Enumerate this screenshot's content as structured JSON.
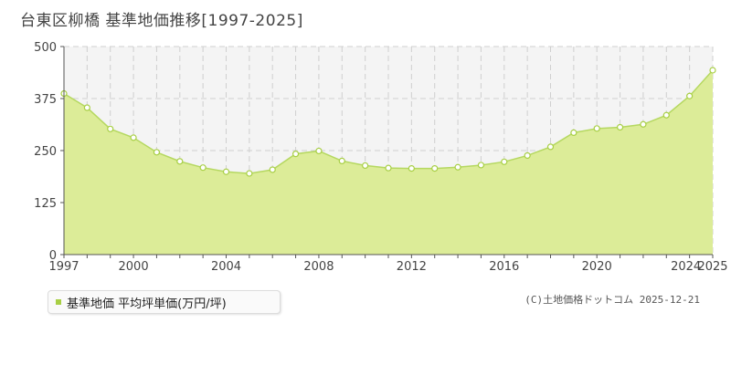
{
  "title": "台東区柳橋  基準地価推移[1997-2025]",
  "legend": {
    "label": "基準地価 平均坪単価(万円/坪)"
  },
  "copyright": "(C)土地価格ドットコム 2025-12-21",
  "colors": {
    "area_fill": "#dcec98",
    "line": "#b5d860",
    "plot_bg": "#f4f4f4",
    "grid": "#cfcfcf",
    "marker_fill": "#ffffff",
    "marker_stroke": "#a8cf45",
    "legend_swatch": "#a8cf45"
  },
  "chart_data": {
    "type": "area",
    "title": "台東区柳橋  基準地価推移[1997-2025]",
    "xlabel": "",
    "ylabel": "",
    "xlim": [
      1997,
      2025
    ],
    "ylim": [
      0,
      500
    ],
    "yticks": [
      0,
      125,
      250,
      375,
      500
    ],
    "xticks": [
      1997,
      2000,
      2004,
      2008,
      2012,
      2016,
      2020,
      2024,
      2025
    ],
    "grid": true,
    "legend_position": "bottom-left",
    "series": [
      {
        "name": "基準地価 平均坪単価(万円/坪)",
        "x": [
          1997,
          1998,
          1999,
          2000,
          2001,
          2002,
          2003,
          2004,
          2005,
          2006,
          2007,
          2008,
          2009,
          2010,
          2011,
          2012,
          2013,
          2014,
          2015,
          2016,
          2017,
          2018,
          2019,
          2020,
          2021,
          2022,
          2023,
          2024,
          2025
        ],
        "values": [
          387,
          353,
          302,
          281,
          246,
          224,
          209,
          199,
          195,
          204,
          242,
          249,
          225,
          214,
          208,
          207,
          207,
          210,
          215,
          223,
          238,
          259,
          293,
          303,
          306,
          313,
          335,
          381,
          443
        ]
      }
    ]
  }
}
